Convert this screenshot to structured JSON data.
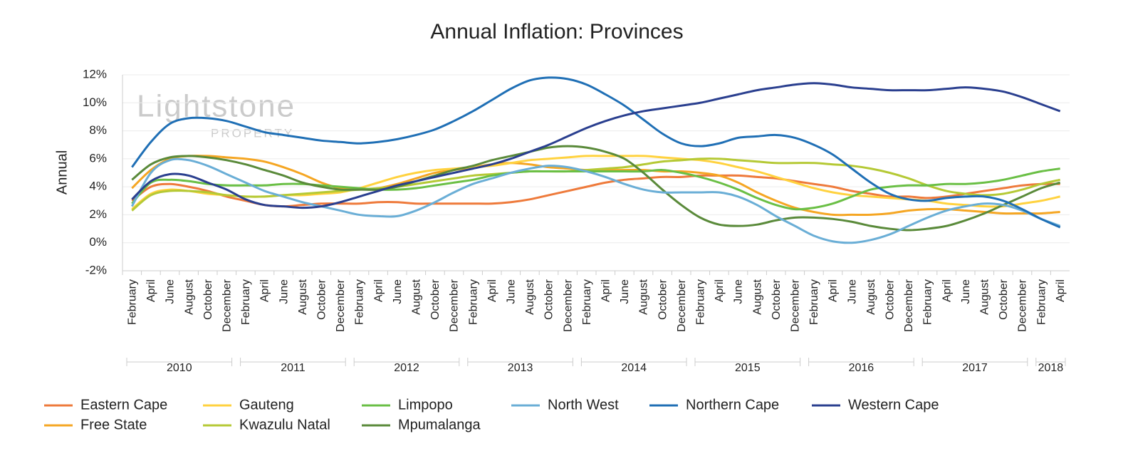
{
  "chart_data": {
    "type": "line",
    "title": "Annual Inflation: Provinces",
    "y_label": "Annual",
    "watermark": {
      "line1": "Lightstone",
      "line2": "PROPERTY"
    },
    "categories": [
      "February",
      "April",
      "June",
      "August",
      "October",
      "December",
      "February",
      "April",
      "June",
      "August",
      "October",
      "December",
      "February",
      "April",
      "June",
      "August",
      "October",
      "December",
      "February",
      "April",
      "June",
      "August",
      "October",
      "December",
      "February",
      "April",
      "June",
      "August",
      "October",
      "December",
      "February",
      "April",
      "June",
      "August",
      "October",
      "December",
      "February",
      "April",
      "June",
      "August",
      "October",
      "December",
      "February",
      "April",
      "June",
      "August",
      "October",
      "December",
      "February",
      "April"
    ],
    "x_groups": [
      "2010",
      "2011",
      "2012",
      "2013",
      "2014",
      "2015",
      "2016",
      "2017",
      "2018"
    ],
    "ylim": [
      -2,
      12
    ],
    "yticks": [
      {
        "value": -2,
        "label": "-2%"
      },
      {
        "value": 0,
        "label": "0%"
      },
      {
        "value": 2,
        "label": "2%"
      },
      {
        "value": 4,
        "label": "4%"
      },
      {
        "value": 6,
        "label": "6%"
      },
      {
        "value": 8,
        "label": "8%"
      },
      {
        "value": 10,
        "label": "10%"
      },
      {
        "value": 12,
        "label": "12%"
      }
    ],
    "grid": true,
    "legend": "bottom",
    "series": [
      {
        "name": "Eastern Cape",
        "color": "#ee7a3b",
        "values": [
          3.0,
          4.0,
          4.2,
          4.0,
          3.7,
          3.3,
          3.0,
          2.7,
          2.6,
          2.7,
          2.8,
          2.8,
          2.8,
          2.9,
          2.9,
          2.8,
          2.8,
          2.8,
          2.8,
          2.8,
          2.9,
          3.1,
          3.4,
          3.7,
          4.0,
          4.3,
          4.5,
          4.6,
          4.7,
          4.7,
          4.8,
          4.8,
          4.8,
          4.7,
          4.6,
          4.4,
          4.2,
          4.0,
          3.7,
          3.5,
          3.3,
          3.3,
          3.2,
          3.3,
          3.5,
          3.7,
          3.9,
          4.1,
          4.2,
          4.2
        ]
      },
      {
        "name": "Free State",
        "color": "#f5a623",
        "values": [
          3.9,
          5.2,
          6.0,
          6.2,
          6.2,
          6.1,
          6.0,
          5.8,
          5.4,
          4.9,
          4.3,
          3.9,
          3.8,
          3.9,
          4.2,
          4.6,
          5.0,
          5.2,
          5.4,
          5.6,
          5.7,
          5.6,
          5.4,
          5.3,
          5.2,
          5.2,
          5.2,
          5.2,
          5.1,
          5.1,
          5.0,
          4.8,
          4.3,
          3.6,
          3.0,
          2.5,
          2.2,
          2.0,
          2.0,
          2.0,
          2.1,
          2.3,
          2.4,
          2.4,
          2.3,
          2.2,
          2.1,
          2.1,
          2.1,
          2.2
        ]
      },
      {
        "name": "Gauteng",
        "color": "#ffd23f",
        "values": [
          2.4,
          3.5,
          3.8,
          3.7,
          3.5,
          3.4,
          3.3,
          3.3,
          3.4,
          3.4,
          3.5,
          3.6,
          3.9,
          4.3,
          4.7,
          5.0,
          5.2,
          5.3,
          5.4,
          5.5,
          5.7,
          5.9,
          6.0,
          6.1,
          6.2,
          6.2,
          6.2,
          6.2,
          6.1,
          6.0,
          5.9,
          5.7,
          5.4,
          5.1,
          4.7,
          4.3,
          3.9,
          3.6,
          3.4,
          3.3,
          3.2,
          3.1,
          3.0,
          2.8,
          2.7,
          2.6,
          2.6,
          2.8,
          3.0,
          3.3
        ]
      },
      {
        "name": "Kwazulu Natal",
        "color": "#b5c935",
        "values": [
          2.3,
          3.4,
          3.7,
          3.7,
          3.6,
          3.4,
          3.3,
          3.3,
          3.4,
          3.5,
          3.6,
          3.7,
          3.8,
          3.9,
          4.0,
          4.2,
          4.4,
          4.6,
          4.8,
          4.9,
          5.0,
          5.1,
          5.1,
          5.1,
          5.2,
          5.3,
          5.4,
          5.6,
          5.8,
          5.9,
          6.0,
          6.0,
          5.9,
          5.8,
          5.7,
          5.7,
          5.7,
          5.6,
          5.5,
          5.3,
          5.0,
          4.6,
          4.1,
          3.7,
          3.5,
          3.4,
          3.5,
          3.8,
          4.2,
          4.5
        ]
      },
      {
        "name": "Limpopo",
        "color": "#6abf45",
        "values": [
          2.8,
          4.3,
          4.5,
          4.4,
          4.2,
          4.1,
          4.1,
          4.1,
          4.2,
          4.2,
          4.1,
          4.0,
          3.9,
          3.8,
          3.8,
          3.9,
          4.1,
          4.3,
          4.5,
          4.8,
          5.0,
          5.1,
          5.1,
          5.1,
          5.1,
          5.1,
          5.1,
          5.1,
          5.2,
          5.0,
          4.7,
          4.3,
          3.8,
          3.2,
          2.7,
          2.4,
          2.5,
          2.8,
          3.3,
          3.8,
          4.0,
          4.1,
          4.1,
          4.2,
          4.2,
          4.3,
          4.5,
          4.8,
          5.1,
          5.3
        ]
      },
      {
        "name": "Mpumalanga",
        "color": "#5a8a3a",
        "values": [
          4.5,
          5.6,
          6.1,
          6.2,
          6.1,
          5.9,
          5.6,
          5.2,
          4.8,
          4.3,
          4.0,
          3.8,
          3.8,
          3.8,
          4.0,
          4.4,
          4.8,
          5.2,
          5.5,
          5.9,
          6.2,
          6.5,
          6.8,
          6.9,
          6.8,
          6.5,
          6.0,
          5.0,
          3.8,
          2.7,
          1.8,
          1.3,
          1.2,
          1.3,
          1.6,
          1.8,
          1.8,
          1.7,
          1.5,
          1.2,
          1.0,
          0.9,
          1.0,
          1.2,
          1.6,
          2.1,
          2.7,
          3.3,
          3.9,
          4.3
        ]
      },
      {
        "name": "North West",
        "color": "#6aaed6",
        "values": [
          2.6,
          5.0,
          5.9,
          5.9,
          5.5,
          4.9,
          4.3,
          3.7,
          3.3,
          2.9,
          2.6,
          2.3,
          2.0,
          1.9,
          1.9,
          2.3,
          2.9,
          3.6,
          4.2,
          4.6,
          5.0,
          5.3,
          5.5,
          5.4,
          5.1,
          4.7,
          4.2,
          3.8,
          3.6,
          3.6,
          3.6,
          3.6,
          3.3,
          2.7,
          1.9,
          1.2,
          0.5,
          0.1,
          0.0,
          0.2,
          0.6,
          1.2,
          1.8,
          2.3,
          2.6,
          2.8,
          2.7,
          2.3,
          1.7,
          1.2
        ]
      },
      {
        "name": "Northern Cape",
        "color": "#1f6fb5",
        "values": [
          5.4,
          7.2,
          8.5,
          8.9,
          8.9,
          8.7,
          8.3,
          7.9,
          7.7,
          7.5,
          7.3,
          7.2,
          7.1,
          7.2,
          7.4,
          7.7,
          8.1,
          8.7,
          9.4,
          10.2,
          11.0,
          11.6,
          11.8,
          11.7,
          11.3,
          10.6,
          9.8,
          8.8,
          7.8,
          7.1,
          6.9,
          7.1,
          7.5,
          7.6,
          7.7,
          7.5,
          7.0,
          6.3,
          5.3,
          4.3,
          3.5,
          3.1,
          3.0,
          3.2,
          3.3,
          3.3,
          3.0,
          2.4,
          1.7,
          1.1
        ]
      },
      {
        "name": "Western Cape",
        "color": "#2a3f8f",
        "values": [
          3.1,
          4.4,
          4.9,
          4.8,
          4.3,
          3.8,
          3.1,
          2.7,
          2.6,
          2.5,
          2.6,
          2.9,
          3.3,
          3.7,
          4.1,
          4.4,
          4.7,
          5.0,
          5.3,
          5.6,
          6.0,
          6.5,
          7.0,
          7.6,
          8.2,
          8.7,
          9.1,
          9.4,
          9.6,
          9.8,
          10.0,
          10.3,
          10.6,
          10.9,
          11.1,
          11.3,
          11.4,
          11.3,
          11.1,
          11.0,
          10.9,
          10.9,
          10.9,
          11.0,
          11.1,
          11.0,
          10.8,
          10.4,
          9.9,
          9.4
        ]
      }
    ]
  }
}
